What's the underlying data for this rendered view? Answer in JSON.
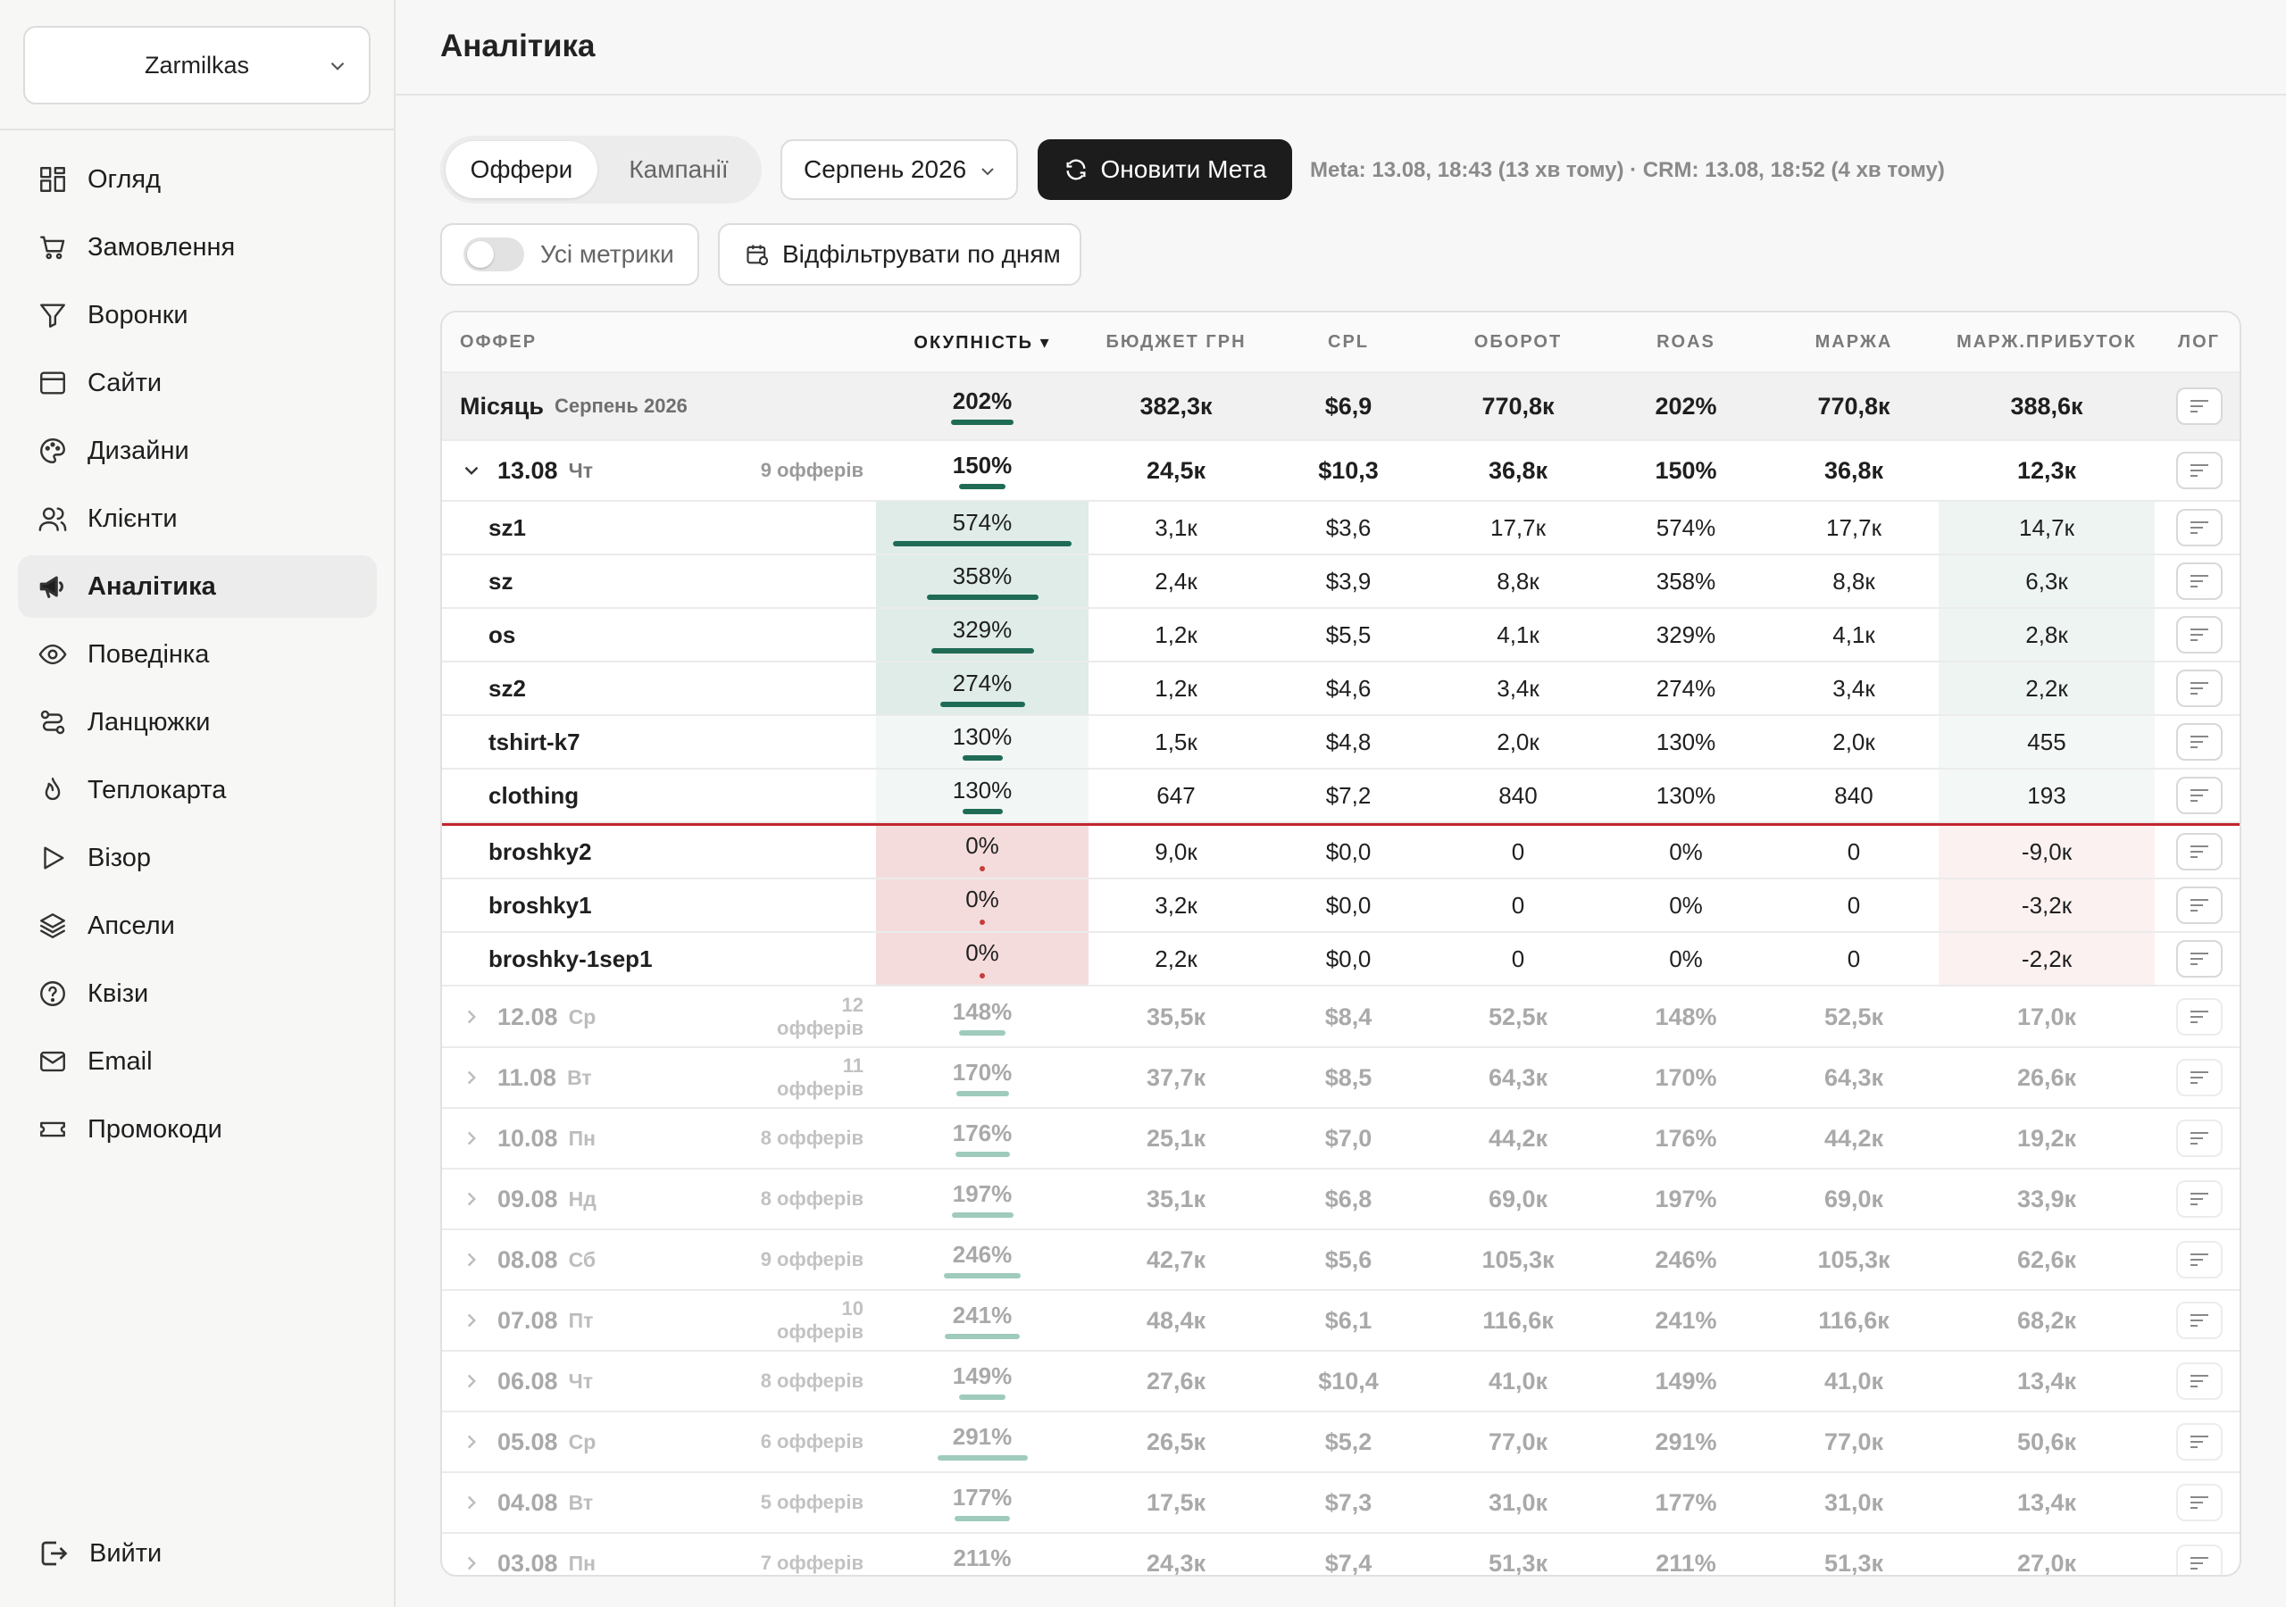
{
  "sidebar": {
    "store": "Zarmilkas",
    "items": [
      {
        "label": "Огляд",
        "icon": "grid-icon"
      },
      {
        "label": "Замовлення",
        "icon": "cart-icon"
      },
      {
        "label": "Воронки",
        "icon": "funnel-icon"
      },
      {
        "label": "Сайти",
        "icon": "browser-icon"
      },
      {
        "label": "Дизайни",
        "icon": "palette-icon"
      },
      {
        "label": "Клієнти",
        "icon": "users-icon"
      },
      {
        "label": "Аналітика",
        "icon": "megaphone-icon",
        "active": true
      },
      {
        "label": "Поведінка",
        "icon": "eye-icon"
      },
      {
        "label": "Ланцюжки",
        "icon": "chain-icon"
      },
      {
        "label": "Теплокарта",
        "icon": "flame-icon"
      },
      {
        "label": "Візор",
        "icon": "play-icon"
      },
      {
        "label": "Апсели",
        "icon": "layers-icon"
      },
      {
        "label": "Квізи",
        "icon": "question-icon"
      },
      {
        "label": "Email",
        "icon": "mail-icon"
      },
      {
        "label": "Промокоди",
        "icon": "ticket-icon"
      }
    ],
    "logout": "Вийти"
  },
  "header": {
    "title": "Аналітика"
  },
  "controls": {
    "tab_offers": "Оффери",
    "tab_campaigns": "Кампанії",
    "month": "Серпень 2026",
    "refresh": "Оновити Мета",
    "sync_info": "Meta: 13.08, 18:43 (13 хв тому) · CRM: 13.08, 18:52 (4 хв тому)",
    "all_metrics": "Усі метрики",
    "filter_days": "Відфільтрувати по дням"
  },
  "colors": {
    "accent_green": "#1f6b55",
    "red_line": "#c0262d",
    "dark_button": "#1c1c1c"
  },
  "table": {
    "columns": {
      "offer": "ОФФЕР",
      "okupnist": "ОКУПНІСТЬ ▾",
      "budget": "БЮДЖЕТ ГРН",
      "cpl": "CPL",
      "oborot": "ОБОРОТ",
      "roas": "ROAS",
      "marzha": "МАРЖА",
      "marzh_prybutok": "МАРЖ.ПРИБУТОК",
      "log": "ЛОГ"
    },
    "month_row": {
      "label": "Місяць",
      "sub": "Серпень 2026",
      "okup": "202%",
      "okup_pct": 202,
      "budget": "382,3к",
      "cpl": "$6,9",
      "oborot": "770,8к",
      "roas": "202%",
      "marzha": "770,8к",
      "mp": "388,6к"
    },
    "expanded_day": {
      "date": "13.08",
      "wd": "Чт",
      "count": "9 офферів",
      "okup": "150%",
      "okup_pct": 150,
      "budget": "24,5к",
      "cpl": "$10,3",
      "oborot": "36,8к",
      "roas": "150%",
      "marzha": "36,8к",
      "mp": "12,3к"
    },
    "offers": [
      {
        "name": "sz1",
        "okup": "574%",
        "okup_pct": 574,
        "budget": "3,1к",
        "cpl": "$3,6",
        "oborot": "17,7к",
        "roas": "574%",
        "marzha": "17,7к",
        "mp": "14,7к"
      },
      {
        "name": "sz",
        "okup": "358%",
        "okup_pct": 358,
        "budget": "2,4к",
        "cpl": "$3,9",
        "oborot": "8,8к",
        "roas": "358%",
        "marzha": "8,8к",
        "mp": "6,3к"
      },
      {
        "name": "os",
        "okup": "329%",
        "okup_pct": 329,
        "budget": "1,2к",
        "cpl": "$5,5",
        "oborot": "4,1к",
        "roas": "329%",
        "marzha": "4,1к",
        "mp": "2,8к"
      },
      {
        "name": "sz2",
        "okup": "274%",
        "okup_pct": 274,
        "budget": "1,2к",
        "cpl": "$4,6",
        "oborot": "3,4к",
        "roas": "274%",
        "marzha": "3,4к",
        "mp": "2,2к"
      },
      {
        "name": "tshirt-k7",
        "okup": "130%",
        "okup_pct": 130,
        "budget": "1,5к",
        "cpl": "$4,8",
        "oborot": "2,0к",
        "roas": "130%",
        "marzha": "2,0к",
        "mp": "455"
      },
      {
        "name": "clothing",
        "okup": "130%",
        "okup_pct": 130,
        "budget": "647",
        "cpl": "$7,2",
        "oborot": "840",
        "roas": "130%",
        "marzha": "840",
        "mp": "193"
      },
      {
        "name": "broshky2",
        "okup": "0%",
        "okup_pct": 0,
        "budget": "9,0к",
        "cpl": "$0,0",
        "oborot": "0",
        "roas": "0%",
        "marzha": "0",
        "mp": "-9,0к"
      },
      {
        "name": "broshky1",
        "okup": "0%",
        "okup_pct": 0,
        "budget": "3,2к",
        "cpl": "$0,0",
        "oborot": "0",
        "roas": "0%",
        "marzha": "0",
        "mp": "-3,2к"
      },
      {
        "name": "broshky-1sep1",
        "okup": "0%",
        "okup_pct": 0,
        "budget": "2,2к",
        "cpl": "$0,0",
        "oborot": "0",
        "roas": "0%",
        "marzha": "0",
        "mp": "-2,2к"
      }
    ],
    "days": [
      {
        "date": "12.08",
        "wd": "Ср",
        "count": "12 офферів",
        "okup": "148%",
        "okup_pct": 148,
        "budget": "35,5к",
        "cpl": "$8,4",
        "oborot": "52,5к",
        "roas": "148%",
        "marzha": "52,5к",
        "mp": "17,0к"
      },
      {
        "date": "11.08",
        "wd": "Вт",
        "count": "11 офферів",
        "okup": "170%",
        "okup_pct": 170,
        "budget": "37,7к",
        "cpl": "$8,5",
        "oborot": "64,3к",
        "roas": "170%",
        "marzha": "64,3к",
        "mp": "26,6к"
      },
      {
        "date": "10.08",
        "wd": "Пн",
        "count": "8 офферів",
        "okup": "176%",
        "okup_pct": 176,
        "budget": "25,1к",
        "cpl": "$7,0",
        "oborot": "44,2к",
        "roas": "176%",
        "marzha": "44,2к",
        "mp": "19,2к"
      },
      {
        "date": "09.08",
        "wd": "Нд",
        "count": "8 офферів",
        "okup": "197%",
        "okup_pct": 197,
        "budget": "35,1к",
        "cpl": "$6,8",
        "oborot": "69,0к",
        "roas": "197%",
        "marzha": "69,0к",
        "mp": "33,9к"
      },
      {
        "date": "08.08",
        "wd": "Сб",
        "count": "9 офферів",
        "okup": "246%",
        "okup_pct": 246,
        "budget": "42,7к",
        "cpl": "$5,6",
        "oborot": "105,3к",
        "roas": "246%",
        "marzha": "105,3к",
        "mp": "62,6к"
      },
      {
        "date": "07.08",
        "wd": "Пт",
        "count": "10 офферів",
        "okup": "241%",
        "okup_pct": 241,
        "budget": "48,4к",
        "cpl": "$6,1",
        "oborot": "116,6к",
        "roas": "241%",
        "marzha": "116,6к",
        "mp": "68,2к"
      },
      {
        "date": "06.08",
        "wd": "Чт",
        "count": "8 офферів",
        "okup": "149%",
        "okup_pct": 149,
        "budget": "27,6к",
        "cpl": "$10,4",
        "oborot": "41,0к",
        "roas": "149%",
        "marzha": "41,0к",
        "mp": "13,4к"
      },
      {
        "date": "05.08",
        "wd": "Ср",
        "count": "6 офферів",
        "okup": "291%",
        "okup_pct": 291,
        "budget": "26,5к",
        "cpl": "$5,2",
        "oborot": "77,0к",
        "roas": "291%",
        "marzha": "77,0к",
        "mp": "50,6к"
      },
      {
        "date": "04.08",
        "wd": "Вт",
        "count": "5 офферів",
        "okup": "177%",
        "okup_pct": 177,
        "budget": "17,5к",
        "cpl": "$7,3",
        "oborot": "31,0к",
        "roas": "177%",
        "marzha": "31,0к",
        "mp": "13,4к"
      },
      {
        "date": "03.08",
        "wd": "Пн",
        "count": "7 офферів",
        "okup": "211%",
        "okup_pct": 211,
        "budget": "24,3к",
        "cpl": "$7,4",
        "oborot": "51,3к",
        "roas": "211%",
        "marzha": "51,3к",
        "mp": "27,0к"
      }
    ]
  }
}
